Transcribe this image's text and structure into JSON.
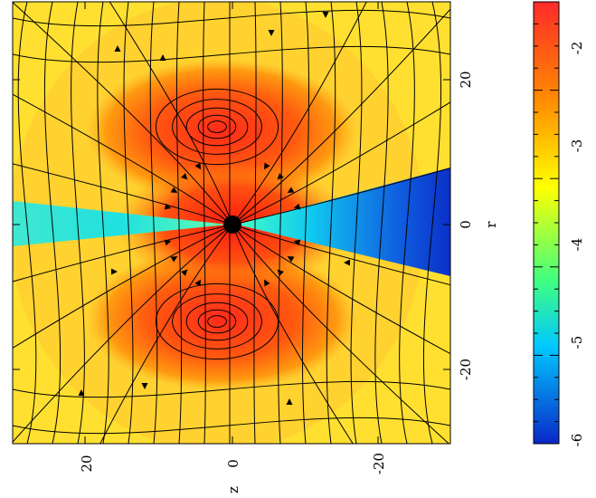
{
  "chart_data": {
    "type": "heatmap",
    "orientation": "rotated-90",
    "title": "",
    "xlabel": "z",
    "ylabel": "r",
    "xlim": [
      30,
      -30
    ],
    "ylim": [
      -30,
      30
    ],
    "xticks": [
      "20",
      "0",
      "-20"
    ],
    "yticks": [
      "20",
      "0",
      "-20"
    ],
    "colorbar": {
      "range": [
        -6,
        -1.5
      ],
      "ticks": [
        "-2",
        "-3",
        "-4",
        "-5",
        "-6"
      ],
      "colormap": [
        "#0a28c8",
        "#00c8ff",
        "#40ff80",
        "#ffff00",
        "#ff8a00",
        "#ff2a2a"
      ]
    },
    "overlays": [
      "magnetic field lines with arrows",
      "central black sphere"
    ],
    "colors": {
      "background": "#ffffff",
      "frame": "#000000",
      "low": "#0a28c8",
      "mid": "#ffff00",
      "high": "#ff2a2a"
    }
  }
}
